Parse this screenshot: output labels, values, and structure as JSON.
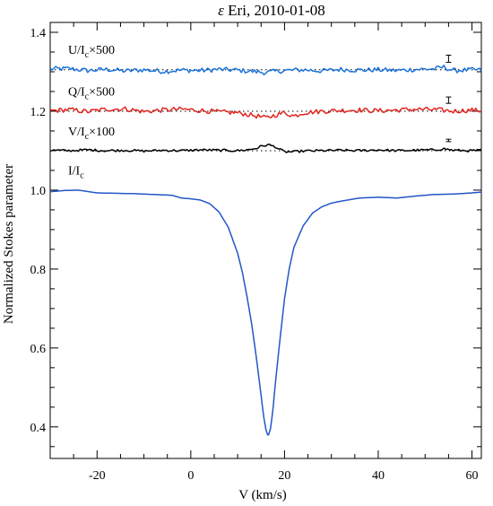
{
  "chart_data": {
    "type": "line",
    "title": "ε Eri, 2010-01-08",
    "title_symbol": "ε",
    "title_rest": " Eri, 2010-01-08",
    "xlabel": "V (km/s)",
    "ylabel": "Normalized Stokes parameter",
    "xlim": [
      -30,
      62
    ],
    "ylim": [
      0.32,
      1.425
    ],
    "x_ticks": [
      -20,
      0,
      20,
      40,
      60
    ],
    "x_tick_labels": [
      "-20",
      "0",
      "20",
      "40",
      "60"
    ],
    "y_ticks": [
      0.4,
      0.6,
      0.8,
      1.0,
      1.2,
      1.4
    ],
    "y_tick_labels": [
      "0.4",
      "0.6",
      "0.8",
      "1.0",
      "1.2",
      "1.4"
    ],
    "grid": false,
    "legend": "none",
    "series": [
      {
        "label_main": "U/I",
        "label_sub": "c",
        "label_tail": "×500",
        "color": "#1a73d9",
        "baseline": 1.305,
        "noise_amplitude": 0.006,
        "error_bar_half_height": 0.009,
        "x": [
          -30,
          -26,
          -22,
          -18,
          -14,
          -10,
          -6,
          -2,
          2,
          6,
          10,
          14,
          16,
          18,
          20,
          24,
          28,
          32,
          36,
          40,
          44,
          48,
          52,
          54,
          56,
          60,
          62
        ],
        "values": [
          1.307,
          1.308,
          1.303,
          1.306,
          1.302,
          1.305,
          1.301,
          1.304,
          1.303,
          1.306,
          1.304,
          1.3,
          1.298,
          1.301,
          1.303,
          1.305,
          1.302,
          1.306,
          1.304,
          1.305,
          1.303,
          1.306,
          1.307,
          1.312,
          1.303,
          1.305,
          1.304
        ]
      },
      {
        "label_main": "Q/I",
        "label_sub": "c",
        "label_tail": "×500",
        "color": "#e0241f",
        "baseline": 1.2,
        "noise_amplitude": 0.006,
        "error_bar_half_height": 0.008,
        "x": [
          -30,
          -26,
          -22,
          -18,
          -14,
          -10,
          -6,
          -2,
          2,
          6,
          10,
          12,
          14,
          16,
          18,
          20,
          22,
          24,
          28,
          32,
          36,
          40,
          44,
          48,
          52,
          56,
          60,
          62
        ],
        "values": [
          1.201,
          1.204,
          1.199,
          1.205,
          1.206,
          1.199,
          1.203,
          1.205,
          1.202,
          1.198,
          1.196,
          1.192,
          1.188,
          1.183,
          1.19,
          1.196,
          1.188,
          1.196,
          1.2,
          1.202,
          1.203,
          1.201,
          1.203,
          1.205,
          1.204,
          1.2,
          1.203,
          1.201
        ]
      },
      {
        "label_main": "V/I",
        "label_sub": "c",
        "label_tail": "×100",
        "color": "#000000",
        "baseline": 1.1,
        "noise_amplitude": 0.003,
        "error_bar_half_height": 0.003,
        "x": [
          -30,
          -26,
          -22,
          -18,
          -14,
          -10,
          -6,
          -2,
          2,
          6,
          10,
          12,
          14,
          15,
          16.5,
          18,
          19,
          20,
          22,
          24,
          28,
          32,
          36,
          40,
          44,
          48,
          52,
          54,
          56,
          60,
          62
        ],
        "values": [
          1.101,
          1.1,
          1.102,
          1.1,
          1.101,
          1.099,
          1.101,
          1.1,
          1.102,
          1.101,
          1.1,
          1.102,
          1.106,
          1.111,
          1.115,
          1.11,
          1.103,
          1.097,
          1.097,
          1.099,
          1.1,
          1.101,
          1.1,
          1.102,
          1.1,
          1.101,
          1.102,
          1.105,
          1.101,
          1.1,
          1.101
        ]
      },
      {
        "label_main": "I/I",
        "label_sub": "c",
        "label_tail": "",
        "color": "#2356c8",
        "baseline": null,
        "x": [
          -30,
          -27,
          -24,
          -20,
          -16,
          -12,
          -8,
          -4,
          -2,
          0,
          2,
          4,
          6,
          8,
          10,
          11,
          12,
          13,
          14,
          15,
          15.5,
          16,
          16.5,
          17,
          17.5,
          18,
          19,
          20,
          21,
          22,
          24,
          26,
          28,
          30,
          32,
          34,
          36,
          38,
          40,
          44,
          48,
          52,
          56,
          60,
          62
        ],
        "values": [
          0.996,
          0.999,
          1.0,
          0.993,
          0.992,
          0.991,
          0.989,
          0.987,
          0.98,
          0.978,
          0.975,
          0.966,
          0.945,
          0.906,
          0.84,
          0.792,
          0.73,
          0.66,
          0.575,
          0.48,
          0.43,
          0.395,
          0.376,
          0.395,
          0.44,
          0.505,
          0.618,
          0.725,
          0.8,
          0.855,
          0.91,
          0.942,
          0.958,
          0.967,
          0.972,
          0.976,
          0.98,
          0.981,
          0.982,
          0.98,
          0.985,
          0.989,
          0.99,
          0.993,
          0.995
        ]
      }
    ]
  }
}
